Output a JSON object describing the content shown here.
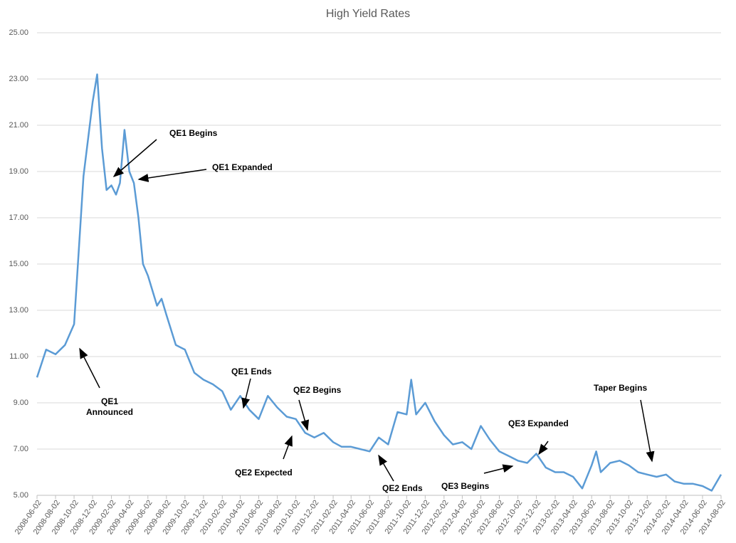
{
  "chart_data": {
    "type": "line",
    "title": "High Yield Rates",
    "x": [
      "2008-06-02",
      "2008-07-02",
      "2008-08-02",
      "2008-09-02",
      "2008-10-02",
      "2008-11-02",
      "2008-12-02",
      "2008-12-17",
      "2009-01-02",
      "2009-01-17",
      "2009-02-02",
      "2009-02-17",
      "2009-03-02",
      "2009-03-17",
      "2009-04-02",
      "2009-04-17",
      "2009-05-02",
      "2009-05-17",
      "2009-06-02",
      "2009-07-02",
      "2009-07-17",
      "2009-08-02",
      "2009-09-02",
      "2009-10-02",
      "2009-11-02",
      "2009-12-02",
      "2010-01-02",
      "2010-02-02",
      "2010-03-02",
      "2010-04-02",
      "2010-05-02",
      "2010-06-02",
      "2010-07-02",
      "2010-08-02",
      "2010-09-02",
      "2010-10-02",
      "2010-11-02",
      "2010-12-02",
      "2011-01-02",
      "2011-02-02",
      "2011-03-02",
      "2011-04-02",
      "2011-05-02",
      "2011-06-02",
      "2011-07-02",
      "2011-08-02",
      "2011-09-02",
      "2011-10-02",
      "2011-10-17",
      "2011-11-02",
      "2011-12-02",
      "2012-01-02",
      "2012-02-02",
      "2012-03-02",
      "2012-04-02",
      "2012-05-02",
      "2012-06-02",
      "2012-07-02",
      "2012-08-02",
      "2012-09-02",
      "2012-10-02",
      "2012-11-02",
      "2012-12-02",
      "2013-01-02",
      "2013-02-02",
      "2013-03-02",
      "2013-04-02",
      "2013-05-02",
      "2013-06-02",
      "2013-06-17",
      "2013-07-02",
      "2013-08-02",
      "2013-09-02",
      "2013-10-02",
      "2013-11-02",
      "2013-12-02",
      "2014-01-02",
      "2014-02-02",
      "2014-03-02",
      "2014-04-02",
      "2014-05-02",
      "2014-06-02",
      "2014-07-02",
      "2014-08-02"
    ],
    "series": [
      {
        "name": "High Yield Rates",
        "color": "#5b9bd5",
        "values": [
          10.1,
          11.3,
          11.1,
          11.5,
          12.4,
          18.8,
          22.0,
          23.2,
          20.0,
          18.2,
          18.4,
          18.0,
          18.5,
          20.8,
          19.0,
          18.5,
          17.0,
          15.0,
          14.5,
          13.2,
          13.5,
          12.8,
          11.5,
          11.3,
          10.3,
          10.0,
          9.8,
          9.5,
          8.7,
          9.3,
          8.7,
          8.3,
          9.3,
          8.8,
          8.4,
          8.3,
          7.7,
          7.5,
          7.7,
          7.3,
          7.1,
          7.1,
          7.0,
          6.9,
          7.5,
          7.2,
          8.6,
          8.5,
          10.0,
          8.5,
          9.0,
          8.2,
          7.6,
          7.2,
          7.3,
          7.0,
          8.0,
          7.4,
          6.9,
          6.7,
          6.5,
          6.4,
          6.8,
          6.2,
          6.0,
          6.0,
          5.8,
          5.3,
          6.3,
          6.9,
          6.0,
          6.4,
          6.5,
          6.3,
          6.0,
          5.9,
          5.8,
          5.9,
          5.6,
          5.5,
          5.5,
          5.4,
          5.2,
          5.9
        ]
      }
    ],
    "xlim": [
      "2008-06-02",
      "2014-08-02"
    ],
    "xticks": [
      "2008-06-02",
      "2008-08-02",
      "2008-10-02",
      "2008-12-02",
      "2009-02-02",
      "2009-04-02",
      "2009-06-02",
      "2009-08-02",
      "2009-10-02",
      "2009-12-02",
      "2010-02-02",
      "2010-04-02",
      "2010-06-02",
      "2010-08-02",
      "2010-10-02",
      "2010-12-02",
      "2011-02-02",
      "2011-04-02",
      "2011-06-02",
      "2011-08-02",
      "2011-10-02",
      "2011-12-02",
      "2012-02-02",
      "2012-04-02",
      "2012-06-02",
      "2012-08-02",
      "2012-10-02",
      "2012-12-02",
      "2013-02-02",
      "2013-04-02",
      "2013-06-02",
      "2013-08-02",
      "2013-10-02",
      "2013-12-02",
      "2014-02-02",
      "2014-04-02",
      "2014-06-02",
      "2014-08-02"
    ],
    "ylim": [
      5,
      25
    ],
    "yticks": [
      {
        "value": 5,
        "label": "5.00"
      },
      {
        "value": 7,
        "label": "7.00"
      },
      {
        "value": 9,
        "label": "9.00"
      },
      {
        "value": 11,
        "label": "11.00"
      },
      {
        "value": 13,
        "label": "13.00"
      },
      {
        "value": 15,
        "label": "15.00"
      },
      {
        "value": 17,
        "label": "17.00"
      },
      {
        "value": 19,
        "label": "19.00"
      },
      {
        "value": 21,
        "label": "21.00"
      },
      {
        "value": 23,
        "label": "23.00"
      },
      {
        "value": 25,
        "label": "25.00"
      }
    ],
    "grid": true,
    "annotations": [
      [
        "QE1",
        "Announced"
      ],
      [
        "QE1 Begins"
      ],
      [
        "QE1 Expanded"
      ],
      [
        "QE1 Ends"
      ],
      [
        "QE2 Begins"
      ],
      [
        "QE2 Expected"
      ],
      [
        "QE2 Ends"
      ],
      [
        "QE3 Begins"
      ],
      [
        "QE3 Expanded"
      ],
      [
        "Taper Begins"
      ]
    ]
  }
}
